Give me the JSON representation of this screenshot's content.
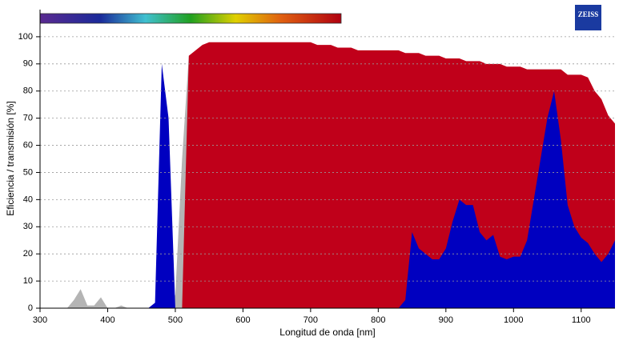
{
  "logo": "ZEISS",
  "chart_data": {
    "type": "area",
    "xlabel": "Longitud de onda [nm]",
    "ylabel": "Eficiencia / transmisión [%]",
    "x": [
      300,
      310,
      320,
      330,
      340,
      350,
      360,
      370,
      380,
      390,
      400,
      410,
      420,
      430,
      440,
      450,
      460,
      470,
      480,
      490,
      500,
      510,
      520,
      530,
      540,
      550,
      560,
      570,
      580,
      590,
      600,
      610,
      620,
      630,
      640,
      650,
      660,
      670,
      680,
      690,
      700,
      710,
      720,
      730,
      740,
      750,
      760,
      770,
      780,
      790,
      800,
      810,
      820,
      830,
      840,
      850,
      860,
      870,
      880,
      890,
      900,
      910,
      920,
      930,
      940,
      950,
      960,
      970,
      980,
      990,
      1000,
      1010,
      1020,
      1030,
      1040,
      1050,
      1060,
      1070,
      1080,
      1090,
      1100,
      1110,
      1120,
      1130,
      1140,
      1150
    ],
    "series": [
      {
        "color": "#b4b4b4",
        "values": [
          0,
          0,
          0,
          0,
          0,
          3,
          7,
          1,
          1,
          4,
          0,
          0,
          1,
          0,
          0,
          0,
          0,
          0,
          0,
          0,
          5,
          55,
          93,
          94,
          0,
          0,
          0,
          0,
          0,
          0,
          0,
          0,
          0,
          0,
          0,
          0,
          0,
          0,
          0,
          0,
          0,
          0,
          0,
          0,
          0,
          0,
          0,
          0,
          0,
          0,
          0,
          0,
          0,
          0,
          0,
          0,
          0,
          0,
          0,
          0,
          0,
          0,
          0,
          0,
          0,
          0,
          0,
          0,
          0,
          0,
          0,
          0,
          0,
          0,
          0,
          0,
          0,
          0,
          0,
          0,
          0,
          0,
          0,
          0,
          0,
          0
        ]
      },
      {
        "color": "#c0001a",
        "values": [
          0,
          0,
          0,
          0,
          0,
          0,
          0,
          0,
          0,
          0,
          0,
          0,
          0,
          0,
          0,
          0,
          0,
          0,
          0,
          0,
          0,
          0,
          93,
          95,
          97,
          98,
          98,
          98,
          98,
          98,
          98,
          98,
          98,
          98,
          98,
          98,
          98,
          98,
          98,
          98,
          98,
          97,
          97,
          97,
          96,
          96,
          96,
          95,
          95,
          95,
          95,
          95,
          95,
          95,
          94,
          94,
          94,
          93,
          93,
          93,
          92,
          92,
          92,
          91,
          91,
          91,
          90,
          90,
          90,
          89,
          89,
          89,
          88,
          88,
          88,
          88,
          88,
          88,
          86,
          86,
          86,
          85,
          80,
          77,
          71,
          68
        ]
      },
      {
        "color": "#0000c0",
        "values": [
          0,
          0,
          0,
          0,
          0,
          0,
          0,
          0,
          0,
          0,
          0,
          0,
          0,
          0,
          0,
          0,
          0,
          2,
          90,
          70,
          0,
          0,
          0,
          0,
          0,
          0,
          0,
          0,
          0,
          0,
          0,
          0,
          0,
          0,
          0,
          0,
          0,
          0,
          0,
          0,
          0,
          0,
          0,
          0,
          0,
          0,
          0,
          0,
          0,
          0,
          0,
          0,
          0,
          0,
          3,
          28,
          22,
          20,
          18,
          18,
          22,
          32,
          40,
          38,
          38,
          28,
          25,
          27,
          19,
          18,
          19,
          19,
          25,
          40,
          55,
          70,
          80,
          62,
          38,
          30,
          26,
          24,
          20,
          17,
          20,
          25
        ]
      }
    ],
    "xlim": [
      300,
      1150
    ],
    "xticks": [
      300,
      400,
      500,
      600,
      700,
      800,
      900,
      1000,
      1100
    ],
    "ylim": [
      0,
      110
    ],
    "yticks": [
      0,
      10,
      20,
      30,
      40,
      50,
      60,
      70,
      80,
      90,
      100
    ],
    "grid": true
  }
}
